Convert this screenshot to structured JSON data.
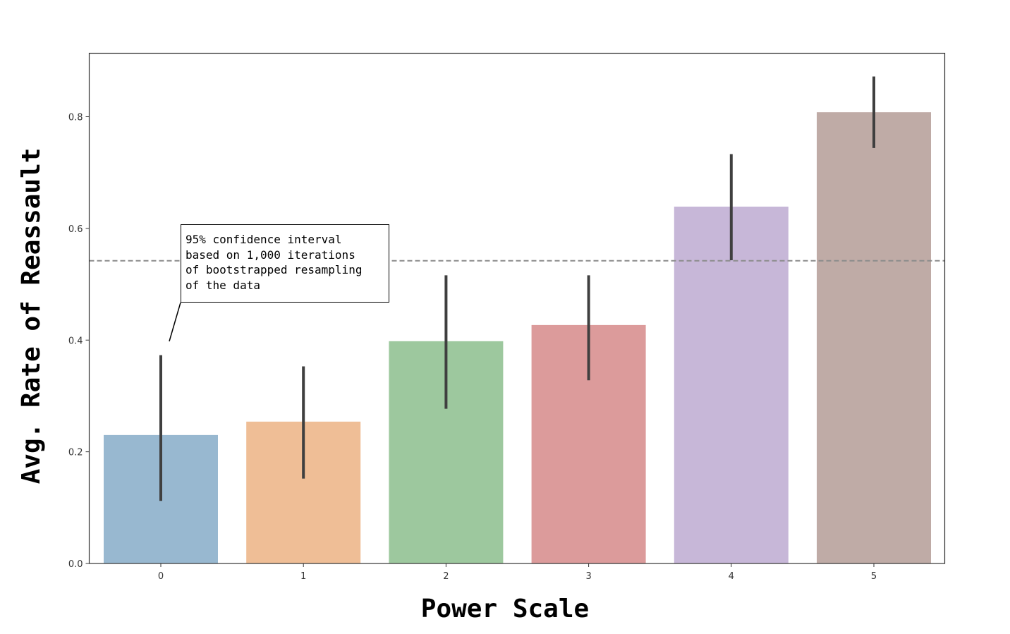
{
  "chart_data": {
    "type": "bar",
    "title": "",
    "xlabel": "Power Scale",
    "ylabel": "Avg. Rate of Reassault",
    "categories": [
      "0",
      "1",
      "2",
      "3",
      "4",
      "5"
    ],
    "values": [
      0.23,
      0.254,
      0.398,
      0.427,
      0.639,
      0.808
    ],
    "error_bars": [
      {
        "lower": 0.112,
        "upper": 0.373
      },
      {
        "lower": 0.152,
        "upper": 0.353
      },
      {
        "lower": 0.277,
        "upper": 0.516
      },
      {
        "lower": 0.328,
        "upper": 0.516
      },
      {
        "lower": 0.543,
        "upper": 0.733
      },
      {
        "lower": 0.744,
        "upper": 0.872
      }
    ],
    "bar_colors": [
      "#98b8d0",
      "#efbe96",
      "#9dc89e",
      "#dc9b9b",
      "#c7b7d8",
      "#bfaba6"
    ],
    "reference_line": {
      "y": 0.542,
      "style": "dashed",
      "color": "#8c8c8c"
    },
    "ylim": [
      0,
      0.9
    ],
    "yticks": [
      0.0,
      0.2,
      0.4,
      0.6,
      0.8
    ],
    "ytick_labels": [
      "0.0",
      "0.2",
      "0.4",
      "0.6",
      "0.8"
    ],
    "grid": false,
    "annotation": {
      "lines": [
        "95% confidence interval",
        "based on 1,000 iterations",
        "of bootstrapped resampling",
        "of the data"
      ]
    }
  }
}
